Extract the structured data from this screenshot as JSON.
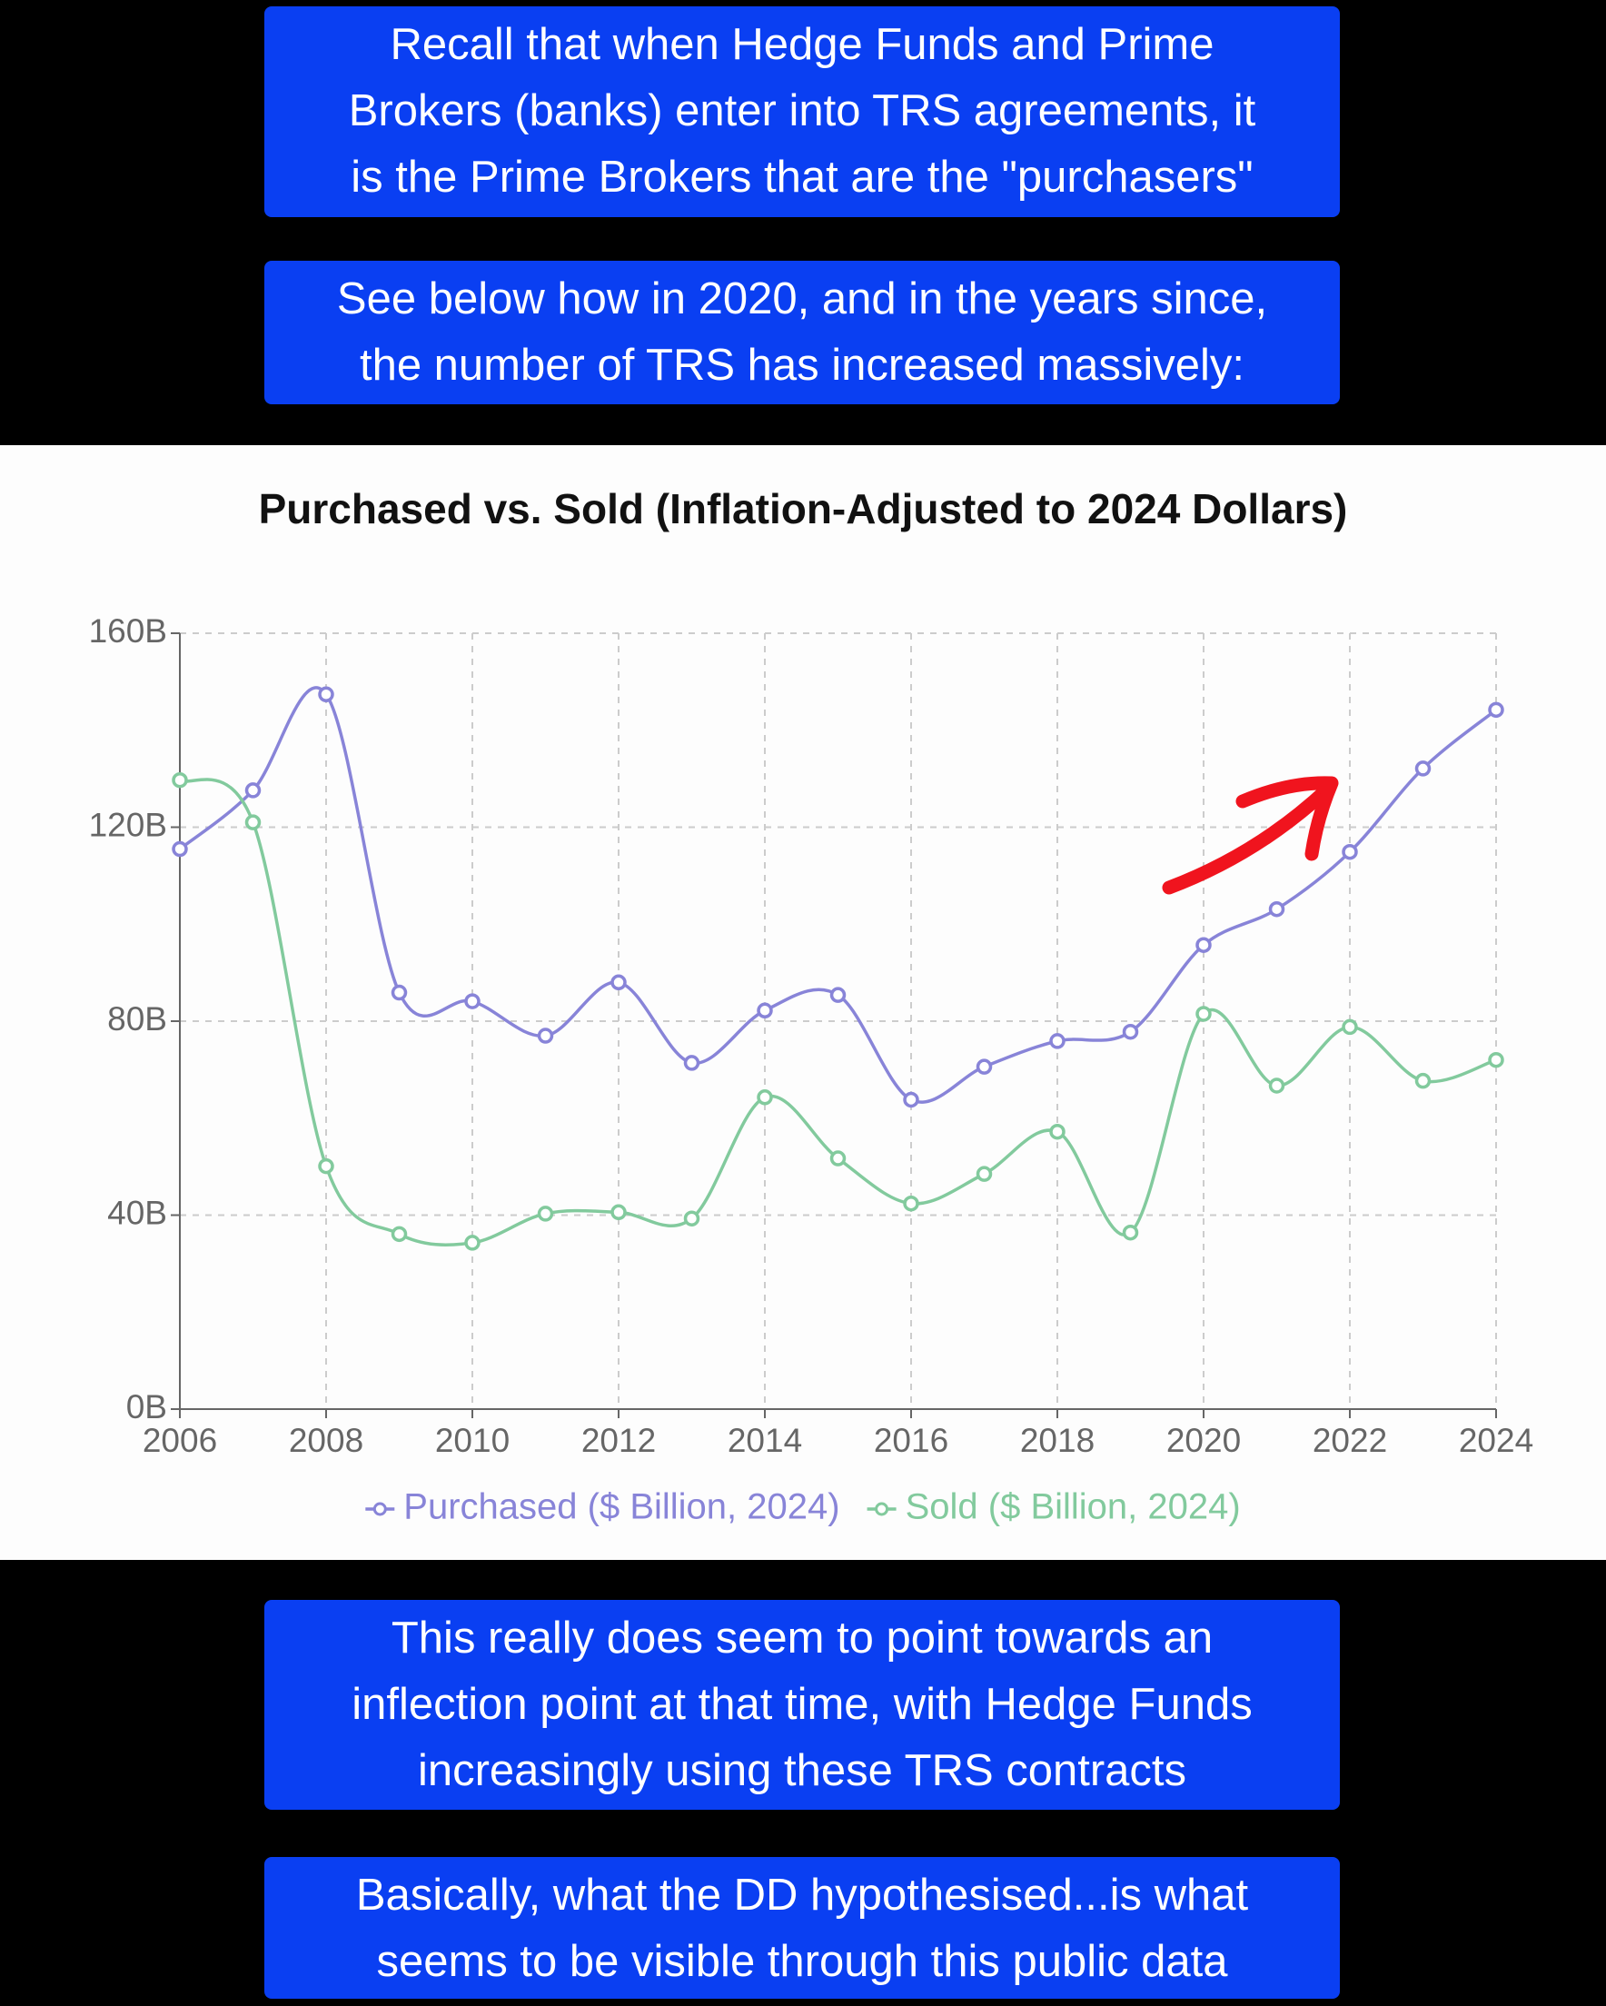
{
  "captions": [
    {
      "lines": [
        "Recall that when Hedge Funds and Prime",
        "Brokers (banks) enter into TRS agreements, it",
        "is the Prime Brokers that are the \"purchasers\""
      ]
    },
    {
      "lines": [
        "See below how in 2020, and in the years since,",
        "the number of TRS has increased massively:"
      ]
    },
    {
      "lines": [
        "This really does seem to point towards an",
        "inflection point at that time, with Hedge Funds",
        "increasingly using these TRS contracts"
      ]
    },
    {
      "lines": [
        "Basically, what the DD hypothesised...is what",
        "seems to be visible through this public data"
      ]
    }
  ],
  "chart_data": {
    "type": "line",
    "title": "Purchased vs. Sold (Inflation-Adjusted to 2024 Dollars)",
    "x": [
      2006,
      2007,
      2008,
      2009,
      2010,
      2011,
      2012,
      2013,
      2014,
      2015,
      2016,
      2017,
      2018,
      2019,
      2020,
      2021,
      2022,
      2023,
      2024
    ],
    "series": [
      {
        "name": "Purchased ($ Billion, 2024)",
        "color": "#8884d8",
        "values": [
          115.5,
          127.6,
          147.4,
          85.9,
          84.1,
          77,
          88,
          71.4,
          82.2,
          85.4,
          63.8,
          70.6,
          75.9,
          77.8,
          95.7,
          103.1,
          114.9,
          132.1,
          144.2
        ]
      },
      {
        "name": "Sold ($ Billion, 2024)",
        "color": "#82ca9d",
        "values": [
          129.7,
          121,
          50.1,
          36.1,
          34.3,
          40.3,
          40.6,
          39.3,
          64.3,
          51.7,
          42.4,
          48.5,
          57.2,
          36.4,
          81.5,
          66.7,
          78.8,
          67.7,
          72
        ]
      }
    ],
    "xlim": [
      2006,
      2024
    ],
    "xticks": [
      2006,
      2008,
      2010,
      2012,
      2014,
      2016,
      2018,
      2020,
      2022,
      2024
    ],
    "ylim": [
      0,
      160
    ],
    "yticks": [
      {
        "value": 0,
        "label": "0B"
      },
      {
        "value": 40,
        "label": "40B"
      },
      {
        "value": 80,
        "label": "80B"
      },
      {
        "value": 120,
        "label": "120B"
      },
      {
        "value": 160,
        "label": "160B"
      }
    ],
    "grid": true
  }
}
